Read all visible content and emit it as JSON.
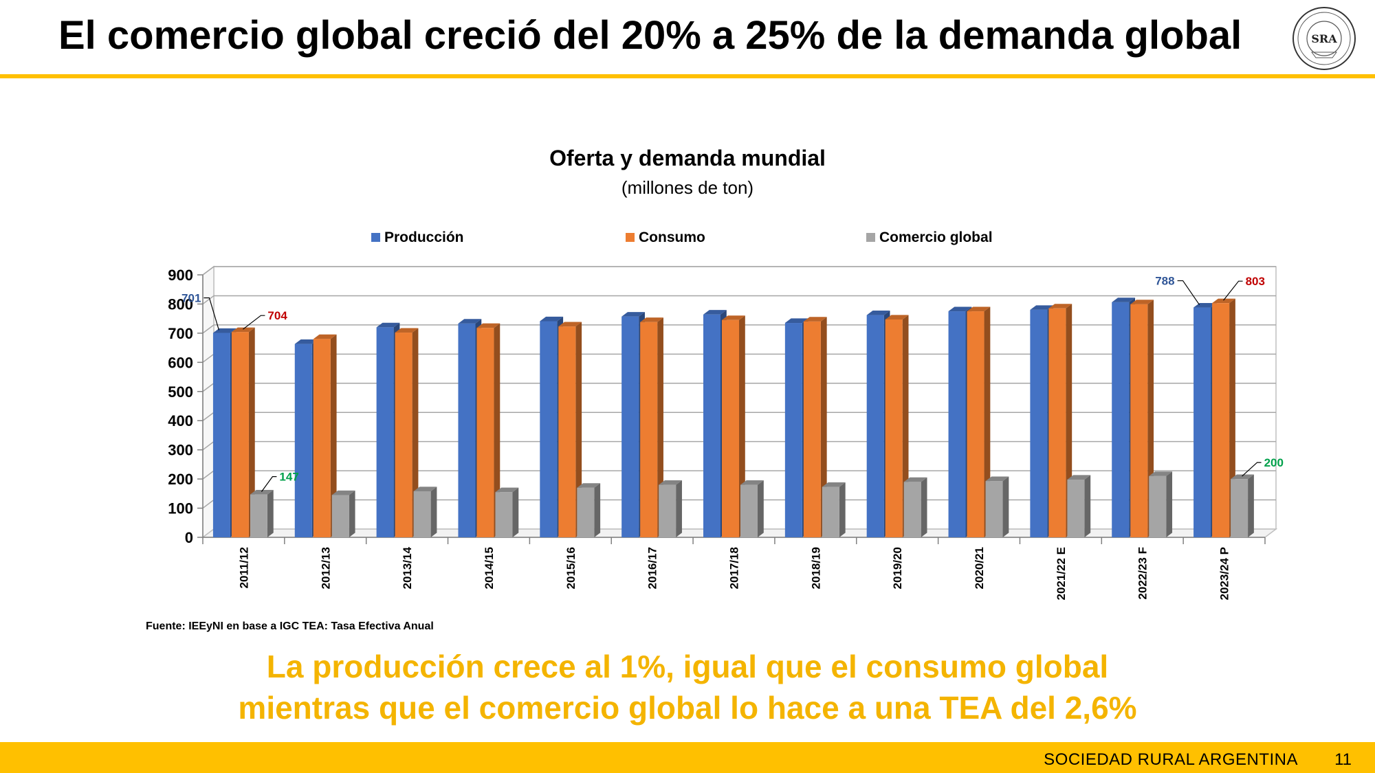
{
  "slide": {
    "title": "El comercio global creció del 20% a 25% de la demanda global",
    "logo_text": "SRA",
    "source": "Fuente: IEEyNI en base a IGC TEA: Tasa Efectiva Anual",
    "conclusion_line1": "La producción  crece al 1%, igual que el consumo global",
    "conclusion_line2": "mientras que el comercio global lo hace a una TEA del 2,6%",
    "footer": "SOCIEDAD RURAL ARGENTINA",
    "page_number": "11"
  },
  "colors": {
    "accent": "#FFC000",
    "produccion": "#4472C4",
    "consumo": "#ED7D31",
    "comercio": "#A5A5A5",
    "label_produccion": "#2F5597",
    "label_consumo": "#C00000",
    "label_comercio": "#00A04A"
  },
  "chart_data": {
    "type": "bar",
    "title": "Oferta y demanda mundial",
    "subtitle": "(millones de ton)",
    "categories": [
      "2011/12",
      "2012/13",
      "2013/14",
      "2014/15",
      "2015/16",
      "2016/17",
      "2017/18",
      "2018/19",
      "2019/20",
      "2020/21",
      "2021/22 E",
      "2022/23 F",
      "2023/24 P"
    ],
    "series": [
      {
        "name": "Producción",
        "values": [
          701,
          663,
          720,
          733,
          741,
          757,
          764,
          735,
          762,
          775,
          780,
          806,
          788
        ]
      },
      {
        "name": "Consumo",
        "values": [
          704,
          680,
          702,
          718,
          723,
          738,
          745,
          740,
          747,
          775,
          785,
          799,
          803
        ]
      },
      {
        "name": "Comercio global",
        "values": [
          147,
          145,
          158,
          155,
          170,
          180,
          180,
          173,
          190,
          193,
          198,
          210,
          200
        ]
      }
    ],
    "data_labels": [
      {
        "series": 0,
        "index": 0,
        "text": "701"
      },
      {
        "series": 1,
        "index": 0,
        "text": "704"
      },
      {
        "series": 2,
        "index": 0,
        "text": "147"
      },
      {
        "series": 0,
        "index": 12,
        "text": "788"
      },
      {
        "series": 1,
        "index": 12,
        "text": "803"
      },
      {
        "series": 2,
        "index": 12,
        "text": "200"
      }
    ],
    "ylim": [
      0,
      900
    ],
    "yticks": [
      0,
      100,
      200,
      300,
      400,
      500,
      600,
      700,
      800,
      900
    ],
    "grid": true,
    "legend": "top",
    "bar_style": "3d"
  }
}
